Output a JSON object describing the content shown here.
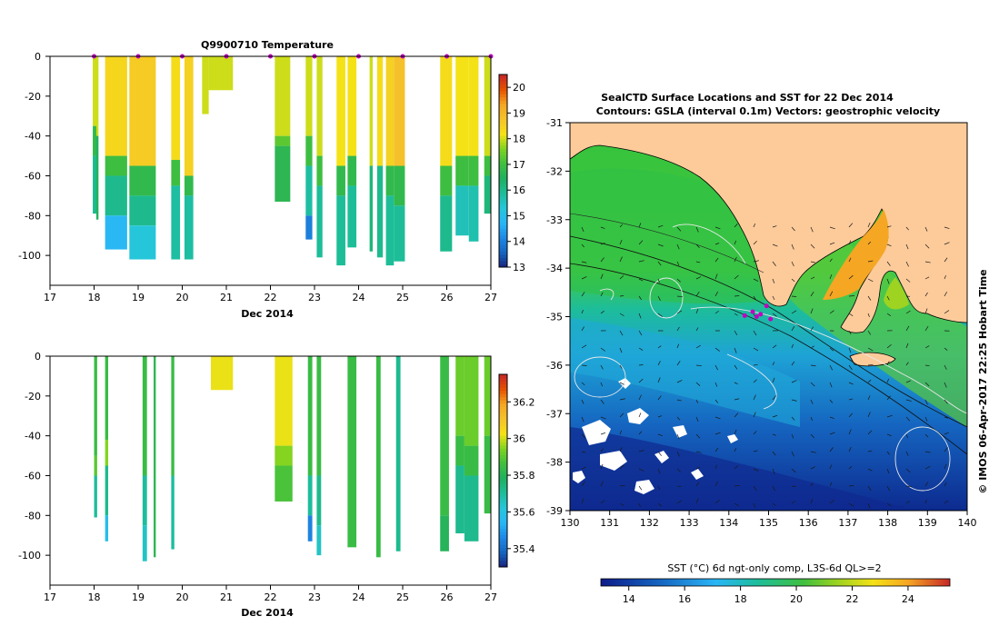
{
  "colors": {
    "temp_scale": [
      "#1a237e",
      "#1565c0",
      "#1e88e5",
      "#29b6f6",
      "#26c6da",
      "#1dbd9a",
      "#20b060",
      "#3fbf3f",
      "#7ed321",
      "#f5e216",
      "#f5c22a",
      "#f5a623",
      "#e65100",
      "#c62828"
    ],
    "land": "#fdcb9a",
    "cast_marker": "#c000c0"
  },
  "chart_data": [
    {
      "type": "heatmap",
      "title": "Q9900710  Temperature",
      "xlabel": "Dec 2014",
      "ylabel": "",
      "xlim": [
        17,
        27
      ],
      "ylim": [
        -115,
        0
      ],
      "x_ticks": [
        "17",
        "18",
        "19",
        "20",
        "21",
        "22",
        "23",
        "24",
        "25",
        "26",
        "27"
      ],
      "y_ticks": [
        "0",
        "-20",
        "-40",
        "-60",
        "-80",
        "-100"
      ],
      "colorbar": {
        "min": 13,
        "max": 20.5,
        "ticks": [
          "13",
          "14",
          "15",
          "16",
          "17",
          "18",
          "19",
          "20"
        ]
      },
      "cast_markers": [
        18.0,
        19.0,
        20.0,
        21.0,
        22.0,
        23.0,
        24.0,
        25.0,
        26.0,
        27.0
      ],
      "profiles": [
        {
          "x0": 17.97,
          "x1": 18.07,
          "max_depth": -79,
          "layers": [
            [
              -35,
              18.0
            ],
            [
              -50,
              16.8
            ],
            [
              -79,
              16.0
            ]
          ]
        },
        {
          "x0": 18.05,
          "x1": 18.1,
          "max_depth": -82,
          "layers": [
            [
              -40,
              18.0
            ],
            [
              -82,
              16.5
            ]
          ]
        },
        {
          "x0": 18.25,
          "x1": 18.75,
          "max_depth": -97,
          "layers": [
            [
              -50,
              18.4
            ],
            [
              -60,
              17.0
            ],
            [
              -80,
              16.0
            ],
            [
              -97,
              14.8
            ]
          ]
        },
        {
          "x0": 18.8,
          "x1": 19.4,
          "max_depth": -102,
          "layers": [
            [
              -55,
              18.6
            ],
            [
              -70,
              16.8
            ],
            [
              -85,
              16.0
            ],
            [
              -102,
              15.3
            ]
          ]
        },
        {
          "x0": 19.75,
          "x1": 19.95,
          "max_depth": -102,
          "layers": [
            [
              -52,
              18.3
            ],
            [
              -65,
              17.0
            ],
            [
              -102,
              15.8
            ]
          ]
        },
        {
          "x0": 20.05,
          "x1": 20.25,
          "max_depth": -102,
          "layers": [
            [
              -60,
              18.5
            ],
            [
              -70,
              16.8
            ],
            [
              -102,
              15.8
            ]
          ]
        },
        {
          "x0": 20.45,
          "x1": 20.6,
          "max_depth": -29,
          "layers": [
            [
              -29,
              18.0
            ]
          ]
        },
        {
          "x0": 20.6,
          "x1": 21.15,
          "max_depth": -17,
          "layers": [
            [
              -17,
              18.0
            ]
          ]
        },
        {
          "x0": 22.1,
          "x1": 22.45,
          "max_depth": -73,
          "layers": [
            [
              -40,
              18.0
            ],
            [
              -45,
              17.3
            ],
            [
              -73,
              16.7
            ]
          ]
        },
        {
          "x0": 22.8,
          "x1": 22.95,
          "max_depth": -92,
          "layers": [
            [
              -40,
              18.0
            ],
            [
              -55,
              17.0
            ],
            [
              -80,
              15.8
            ],
            [
              -92,
              14.0
            ]
          ]
        },
        {
          "x0": 23.05,
          "x1": 23.18,
          "max_depth": -101,
          "layers": [
            [
              -50,
              18.0
            ],
            [
              -65,
              17.0
            ],
            [
              -101,
              15.9
            ]
          ]
        },
        {
          "x0": 23.5,
          "x1": 23.7,
          "max_depth": -105,
          "layers": [
            [
              -55,
              18.2
            ],
            [
              -70,
              16.8
            ],
            [
              -105,
              15.9
            ]
          ]
        },
        {
          "x0": 23.75,
          "x1": 23.95,
          "max_depth": -96,
          "layers": [
            [
              -50,
              18.2
            ],
            [
              -65,
              16.8
            ],
            [
              -96,
              15.9
            ]
          ]
        },
        {
          "x0": 24.25,
          "x1": 24.32,
          "max_depth": -98,
          "layers": [
            [
              -55,
              18.0
            ],
            [
              -98,
              16.2
            ]
          ]
        },
        {
          "x0": 24.42,
          "x1": 24.55,
          "max_depth": -101,
          "layers": [
            [
              -55,
              18.3
            ],
            [
              -101,
              16.0
            ]
          ]
        },
        {
          "x0": 24.62,
          "x1": 24.8,
          "max_depth": -105,
          "layers": [
            [
              -55,
              18.5
            ],
            [
              -70,
              16.8
            ],
            [
              -105,
              15.9
            ]
          ]
        },
        {
          "x0": 24.8,
          "x1": 25.05,
          "max_depth": -103,
          "layers": [
            [
              -55,
              18.8
            ],
            [
              -75,
              16.8
            ],
            [
              -103,
              15.9
            ]
          ]
        },
        {
          "x0": 25.85,
          "x1": 26.12,
          "max_depth": -98,
          "layers": [
            [
              -55,
              18.3
            ],
            [
              -70,
              17.0
            ],
            [
              -98,
              16.0
            ]
          ]
        },
        {
          "x0": 26.2,
          "x1": 26.5,
          "max_depth": -90,
          "layers": [
            [
              -50,
              18.2
            ],
            [
              -65,
              17.0
            ],
            [
              -90,
              15.6
            ]
          ]
        },
        {
          "x0": 26.5,
          "x1": 26.72,
          "max_depth": -93,
          "layers": [
            [
              -50,
              18.2
            ],
            [
              -65,
              17.0
            ],
            [
              -93,
              15.7
            ]
          ]
        },
        {
          "x0": 26.85,
          "x1": 27.0,
          "max_depth": -79,
          "layers": [
            [
              -50,
              18.0
            ],
            [
              -60,
              17.0
            ],
            [
              -79,
              16.2
            ]
          ]
        }
      ]
    },
    {
      "type": "heatmap",
      "title": "",
      "xlabel": "Dec 2014",
      "ylabel": "",
      "xlim": [
        17,
        27
      ],
      "ylim": [
        -115,
        0
      ],
      "x_ticks": [
        "17",
        "18",
        "19",
        "20",
        "21",
        "22",
        "23",
        "24",
        "25",
        "26",
        "27"
      ],
      "y_ticks": [
        "0",
        "-20",
        "-40",
        "-60",
        "-80",
        "-100"
      ],
      "colorbar": {
        "min": 35.3,
        "max": 36.35,
        "ticks": [
          "35.4",
          "35.6",
          "35.8",
          "36",
          "36.2"
        ]
      },
      "profiles": [
        {
          "x0": 18.0,
          "x1": 18.07,
          "max_depth": -81,
          "layers": [
            [
              -50,
              35.85
            ],
            [
              -60,
              35.9
            ],
            [
              -81,
              35.7
            ]
          ]
        },
        {
          "x0": 18.25,
          "x1": 18.32,
          "max_depth": -93,
          "layers": [
            [
              -42,
              35.85
            ],
            [
              -55,
              35.95
            ],
            [
              -80,
              35.72
            ],
            [
              -93,
              35.58
            ]
          ]
        },
        {
          "x0": 19.1,
          "x1": 19.2,
          "max_depth": -103,
          "layers": [
            [
              -60,
              35.85
            ],
            [
              -85,
              35.7
            ],
            [
              -103,
              35.65
            ]
          ]
        },
        {
          "x0": 19.35,
          "x1": 19.4,
          "max_depth": -101,
          "layers": [
            [
              -101,
              35.82
            ]
          ]
        },
        {
          "x0": 19.75,
          "x1": 19.82,
          "max_depth": -97,
          "layers": [
            [
              -60,
              35.85
            ],
            [
              -97,
              35.7
            ]
          ]
        },
        {
          "x0": 20.65,
          "x1": 21.15,
          "max_depth": -17,
          "layers": [
            [
              -17,
              36.02
            ]
          ]
        },
        {
          "x0": 22.1,
          "x1": 22.5,
          "max_depth": -73,
          "layers": [
            [
              -45,
              36.02
            ],
            [
              -55,
              35.95
            ],
            [
              -73,
              35.88
            ]
          ]
        },
        {
          "x0": 22.85,
          "x1": 22.95,
          "max_depth": -93,
          "layers": [
            [
              -60,
              35.85
            ],
            [
              -80,
              35.7
            ],
            [
              -93,
              35.45
            ]
          ]
        },
        {
          "x0": 23.05,
          "x1": 23.15,
          "max_depth": -100,
          "layers": [
            [
              -60,
              35.85
            ],
            [
              -85,
              35.72
            ],
            [
              -100,
              35.65
            ]
          ]
        },
        {
          "x0": 23.75,
          "x1": 23.95,
          "max_depth": -96,
          "layers": [
            [
              -96,
              35.85
            ]
          ]
        },
        {
          "x0": 24.4,
          "x1": 24.5,
          "max_depth": -101,
          "layers": [
            [
              -101,
              35.85
            ]
          ]
        },
        {
          "x0": 24.85,
          "x1": 24.95,
          "max_depth": -98,
          "layers": [
            [
              -98,
              35.72
            ]
          ]
        },
        {
          "x0": 25.85,
          "x1": 26.05,
          "max_depth": -98,
          "layers": [
            [
              -80,
              35.85
            ],
            [
              -98,
              35.8
            ]
          ]
        },
        {
          "x0": 26.2,
          "x1": 26.4,
          "max_depth": -89,
          "layers": [
            [
              -40,
              35.92
            ],
            [
              -55,
              35.85
            ],
            [
              -89,
              35.72
            ]
          ]
        },
        {
          "x0": 26.4,
          "x1": 26.72,
          "max_depth": -93,
          "layers": [
            [
              -45,
              35.92
            ],
            [
              -60,
              35.85
            ],
            [
              -93,
              35.72
            ]
          ]
        },
        {
          "x0": 26.85,
          "x1": 27.0,
          "max_depth": -79,
          "layers": [
            [
              -40,
              35.92
            ],
            [
              -79,
              35.85
            ]
          ]
        }
      ]
    },
    {
      "type": "heatmap",
      "title": "SealCTD Surface Locations and SST for 22 Dec 2014",
      "subtitle": "Contours: GSLA (interval 0.1m) Vectors: geostrophic velocity",
      "xlabel": "",
      "ylabel": "",
      "xlim": [
        130,
        140
      ],
      "ylim": [
        -39,
        -31
      ],
      "x_ticks": [
        "130",
        "131",
        "132",
        "133",
        "134",
        "135",
        "136",
        "137",
        "138",
        "139",
        "140"
      ],
      "y_ticks": [
        "-31",
        "-32",
        "-33",
        "-34",
        "-35",
        "-36",
        "-37",
        "-38",
        "-39"
      ],
      "colorbar": {
        "label": "SST (°C) 6d ngt-only comp, L3S-6d QL>=2",
        "min": 13,
        "max": 25.5,
        "ticks": [
          "14",
          "16",
          "18",
          "20",
          "22",
          "24"
        ]
      },
      "seal_locations": [
        [
          134.4,
          -34.98
        ],
        [
          134.6,
          -34.9
        ],
        [
          134.8,
          -34.95
        ],
        [
          134.95,
          -34.78
        ],
        [
          135.05,
          -35.05
        ],
        [
          134.7,
          -35.0
        ]
      ],
      "side_label": "© IMOS 06-Apr-2017 22:25 Hobart Time"
    }
  ]
}
